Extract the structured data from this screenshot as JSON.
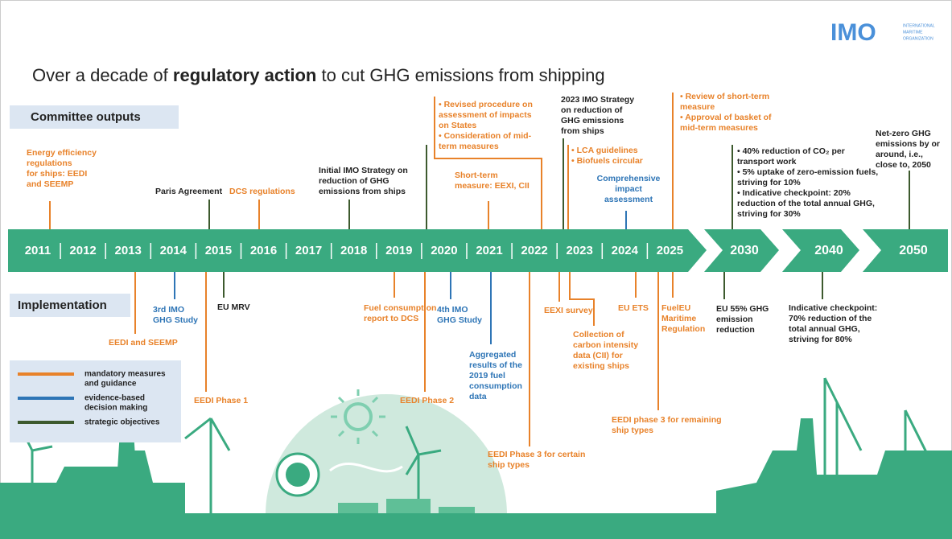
{
  "logo": {
    "mark": "IMO",
    "lines": [
      "INTERNATIONAL",
      "MARITIME",
      "ORGANIZATION"
    ]
  },
  "title": {
    "prefix": "Over a decade of ",
    "bold": "regulatory action",
    "suffix": " to cut GHG emissions from shipping"
  },
  "sections": {
    "committee": "Committee outputs",
    "implementation": "Implementation"
  },
  "years": [
    "2011",
    "2012",
    "2013",
    "2014",
    "2015",
    "2016",
    "2017",
    "2018",
    "2019",
    "2020",
    "2021",
    "2022",
    "2023",
    "2024",
    "2025"
  ],
  "milestones": [
    "2030",
    "2040",
    "2050"
  ],
  "legend": [
    {
      "lines": [
        "mandatory measures",
        "and guidance"
      ],
      "color": "#e8822a"
    },
    {
      "lines": [
        "evidence-based",
        "decision making"
      ],
      "color": "#2e75b6"
    },
    {
      "lines": [
        "strategic objectives"
      ],
      "color": "#3d5a2e"
    }
  ],
  "committee_events": [
    {
      "lines": [
        "Energy efficiency",
        "regulations",
        "for ships: EEDI",
        "and SEEMP"
      ],
      "color": "#e8822a"
    },
    {
      "lines": [
        "Paris Agreement"
      ],
      "color": "#3d5a2e"
    },
    {
      "lines": [
        "DCS regulations"
      ],
      "color": "#e8822a"
    },
    {
      "lines": [
        "Initial IMO Strategy on",
        "reduction of GHG",
        "emissions from ships"
      ],
      "color": "#3d5a2e"
    },
    {
      "lines": [
        "• Revised procedure on",
        "assessment of impacts",
        "on States",
        "• Consideration of mid-",
        "term measures"
      ],
      "color": "#e8822a"
    },
    {
      "lines": [
        "Short-term",
        "measure: EEXI, CII"
      ],
      "color": "#e8822a"
    },
    {
      "lines": [
        "2023 IMO Strategy",
        "on reduction of",
        "GHG emissions",
        "from ships"
      ],
      "color": "#3d5a2e"
    },
    {
      "lines": [
        "• LCA guidelines",
        "• Biofuels circular"
      ],
      "color": "#e8822a"
    },
    {
      "lines": [
        "Comprehensive",
        "impact",
        "assessment"
      ],
      "color": "#2e75b6"
    },
    {
      "lines": [
        "• Review of short-term",
        "measure",
        "• Approval of basket of",
        "mid-term measures"
      ],
      "color": "#e8822a"
    },
    {
      "lines": [
        "• 40% reduction of CO₂ per",
        "transport work",
        "• 5% uptake of zero-emission fuels,",
        "striving for 10%",
        "• Indicative checkpoint: 20%",
        "reduction of the total annual GHG,",
        "striving for 30%"
      ],
      "color": "#3d5a2e"
    },
    {
      "lines": [
        "Net-zero GHG",
        "emissions by or",
        "around, i.e.,",
        "close to, 2050"
      ],
      "color": "#3d5a2e"
    }
  ],
  "implementation_events": [
    {
      "lines": [
        "EEDI and SEEMP"
      ],
      "color": "#e8822a"
    },
    {
      "lines": [
        "3rd IMO",
        "GHG Study"
      ],
      "color": "#2e75b6"
    },
    {
      "lines": [
        "EU MRV"
      ],
      "color": "#3d5a2e"
    },
    {
      "lines": [
        "EEDI Phase 1"
      ],
      "color": "#e8822a"
    },
    {
      "lines": [
        "Fuel consumption",
        "report to DCS"
      ],
      "color": "#e8822a"
    },
    {
      "lines": [
        "EEDI Phase 2"
      ],
      "color": "#e8822a"
    },
    {
      "lines": [
        "4th IMO",
        "GHG Study"
      ],
      "color": "#2e75b6"
    },
    {
      "lines": [
        "Aggregated",
        "results of the",
        "2019 fuel",
        "consumption",
        "data"
      ],
      "color": "#2e75b6"
    },
    {
      "lines": [
        "EEDI Phase 3 for certain",
        "ship types"
      ],
      "color": "#e8822a"
    },
    {
      "lines": [
        "EEXI survey"
      ],
      "color": "#e8822a"
    },
    {
      "lines": [
        "Collection of",
        "carbon intensity",
        "data (CII) for",
        "existing ships"
      ],
      "color": "#e8822a"
    },
    {
      "lines": [
        "EU ETS"
      ],
      "color": "#e8822a"
    },
    {
      "lines": [
        "EEDI phase 3 for remaining",
        "ship types"
      ],
      "color": "#e8822a"
    },
    {
      "lines": [
        "FuelEU",
        "Maritime",
        "Regulation"
      ],
      "color": "#e8822a"
    },
    {
      "lines": [
        "EU 55% GHG",
        "emission",
        "reduction"
      ],
      "color": "#3d5a2e"
    },
    {
      "lines": [
        "Indicative checkpoint:",
        "70% reduction of the",
        "total annual GHG,",
        "striving for 80%"
      ],
      "color": "#3d5a2e"
    }
  ]
}
